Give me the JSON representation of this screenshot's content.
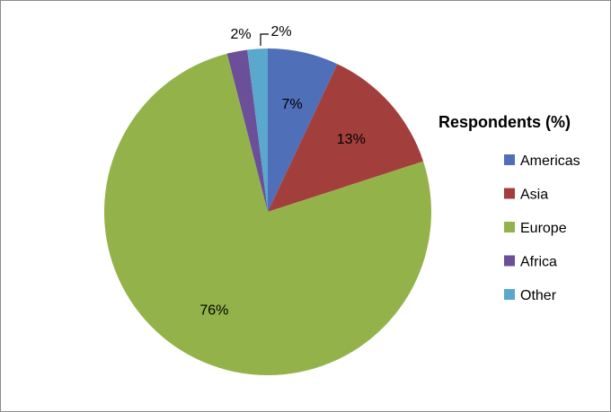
{
  "chart_data": {
    "type": "pie",
    "legend_title": "Respondents (%)",
    "legend_position": "right",
    "start_angle_deg": 0,
    "direction": "clockwise",
    "slices": [
      {
        "label": "Americas",
        "value": 7,
        "display": "7%",
        "color": "#4F6FB8"
      },
      {
        "label": "Asia",
        "value": 13,
        "display": "13%",
        "color": "#A23F3D"
      },
      {
        "label": "Europe",
        "value": 76,
        "display": "76%",
        "color": "#93B34A"
      },
      {
        "label": "Africa",
        "value": 2,
        "display": "2%",
        "color": "#6B4F98"
      },
      {
        "label": "Other",
        "value": 2,
        "display": "2%",
        "color": "#5AA8CC"
      }
    ]
  }
}
